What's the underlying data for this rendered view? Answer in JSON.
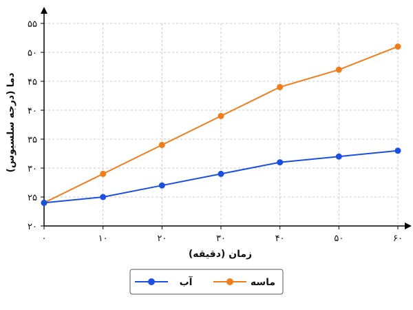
{
  "chart_data": {
    "type": "line",
    "xlabel": "زمان (دقیقه)",
    "ylabel": "دما (درجه سلسیوس)",
    "xlim": [
      0,
      60
    ],
    "ylim": [
      20,
      55
    ],
    "x_ticks": [
      0,
      10,
      20,
      30,
      40,
      50,
      60
    ],
    "x_tick_labels": [
      "۰",
      "۱۰",
      "۲۰",
      "۳۰",
      "۴۰",
      "۵۰",
      "۶۰"
    ],
    "y_ticks": [
      20,
      25,
      30,
      35,
      40,
      45,
      50,
      55
    ],
    "y_tick_labels": [
      "۲۰",
      "۲۵",
      "۳۰",
      "۳۵",
      "۴۰",
      "۴۵",
      "۵۰",
      "۵۵"
    ],
    "grid": true,
    "legend_position": "bottom",
    "x": [
      0,
      10,
      20,
      30,
      40,
      50,
      60
    ],
    "series": [
      {
        "name": "آب",
        "color": "#1a4fe0",
        "values": [
          24,
          25,
          27,
          29,
          31,
          32,
          33
        ]
      },
      {
        "name": "ماسه",
        "color": "#f07d1a",
        "values": [
          24,
          29,
          34,
          39,
          44,
          47,
          51
        ]
      }
    ]
  }
}
